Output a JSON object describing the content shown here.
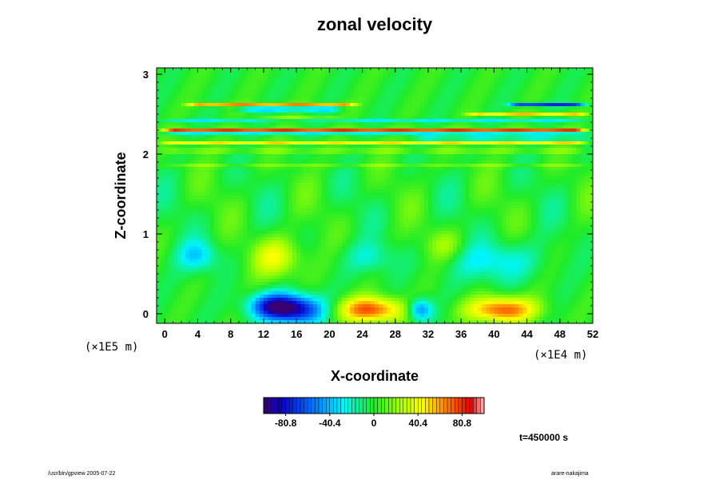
{
  "chart_data": {
    "type": "heatmap",
    "title": "zonal velocity",
    "xlabel": "X-coordinate",
    "ylabel": "Z-coordinate",
    "x_ticks": [
      "0",
      "4",
      "8",
      "12",
      "16",
      "20",
      "24",
      "28",
      "32",
      "36",
      "40",
      "44",
      "48",
      "52"
    ],
    "y_ticks": [
      "0",
      "1",
      "2",
      "3"
    ],
    "xlim": [
      -1,
      52
    ],
    "ylim": [
      -0.12,
      3.08
    ],
    "x_unit": "(×1E4 m)",
    "y_unit": "(×1E5 m)",
    "colorbar": {
      "range": [
        -101,
        101
      ],
      "ticks": [
        "-80.8",
        "-40.4",
        "0",
        "40.4",
        "80.8"
      ],
      "tick_values": [
        -80.8,
        -40.4,
        0,
        40.4,
        80.8
      ]
    },
    "features": [
      {
        "x": 16,
        "z": 0.05,
        "value": -80,
        "rx": 3.5,
        "rz": 0.18
      },
      {
        "x": 13,
        "z": 0.1,
        "value": -60,
        "rx": 3,
        "rz": 0.16
      },
      {
        "x": 31,
        "z": 0.05,
        "value": -55,
        "rx": 1.5,
        "rz": 0.14
      },
      {
        "x": 25,
        "z": 0.05,
        "value": 75,
        "rx": 4,
        "rz": 0.16
      },
      {
        "x": 41,
        "z": 0.05,
        "value": 75,
        "rx": 4,
        "rz": 0.16
      },
      {
        "x": 4,
        "z": 0.72,
        "value": -35,
        "rx": 2.5,
        "rz": 0.2
      },
      {
        "x": 13.5,
        "z": 0.7,
        "value": 40,
        "rx": 3,
        "rz": 0.25
      },
      {
        "x": 25,
        "z": 0.7,
        "value": -22,
        "rx": 3,
        "rz": 0.2
      },
      {
        "x": 40,
        "z": 0.65,
        "value": -30,
        "rx": 5,
        "rz": 0.25
      },
      {
        "x": 34,
        "z": 0.85,
        "value": 20,
        "rx": 2.5,
        "rz": 0.2
      }
    ],
    "bands": [
      {
        "z": 2.62,
        "x0": 2,
        "x1": 24,
        "value": 60
      },
      {
        "z": 2.56,
        "x0": 8,
        "x1": 22,
        "value": -60
      },
      {
        "z": 2.62,
        "x0": 41,
        "x1": 52,
        "value": -70
      },
      {
        "z": 2.5,
        "x0": 36,
        "x1": 52,
        "value": 50
      },
      {
        "z": 2.44,
        "x0": 10,
        "x1": 22,
        "value": 35
      },
      {
        "z": 2.42,
        "x0": -1,
        "x1": 52,
        "value": -25
      },
      {
        "z": 2.3,
        "x0": -1,
        "x1": 52,
        "value": 80
      },
      {
        "z": 2.27,
        "x0": -1,
        "x1": 52,
        "value": -35
      },
      {
        "z": 2.2,
        "x0": 30,
        "x1": 52,
        "value": -40
      },
      {
        "z": 2.14,
        "x0": -1,
        "x1": 52,
        "value": 45
      },
      {
        "z": 2.04,
        "x0": -1,
        "x1": 52,
        "value": 25
      },
      {
        "z": 1.85,
        "x0": -1,
        "x1": 52,
        "value": 15
      }
    ],
    "time_label": "t=450000 s"
  },
  "footer": {
    "left": "/usr/bin/gpview 2005-07-22",
    "right": "arare-nakajima"
  },
  "colors": {
    "background": "#ffffff",
    "zero": "#22ee22"
  }
}
